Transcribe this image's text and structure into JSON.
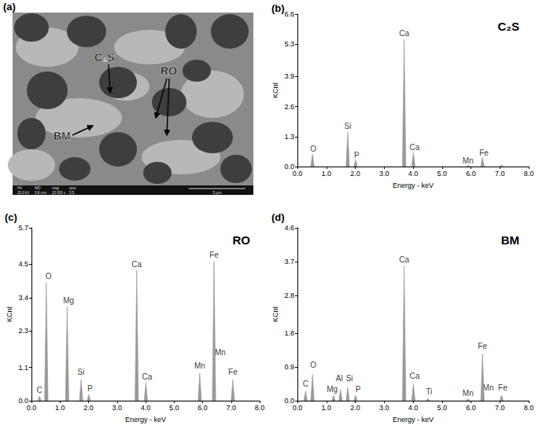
{
  "micrograph": {
    "panel": "(a)",
    "labels": [
      "C₂S",
      "RO",
      "BM"
    ],
    "info_bar": [
      "HV",
      "WD",
      "mag",
      "spot",
      "20.0 kV",
      "9.8 mm",
      "20 000 x",
      "5.5"
    ],
    "scale_bar": "5 μm"
  },
  "chart_data": [
    {
      "type": "line",
      "subtitle": "(b)",
      "title": "C₂S",
      "xlabel": "Energy - keV",
      "ylabel": "KCnt",
      "color": "#999999",
      "grid": false,
      "x": [
        0.1,
        0.46,
        0.52,
        0.58,
        1.68,
        1.74,
        1.8,
        1.95,
        2.01,
        2.07,
        3.63,
        3.69,
        3.75,
        3.95,
        4.01,
        4.07,
        5.84,
        5.9,
        5.96,
        6.34,
        6.4,
        6.46,
        7.0,
        7.06,
        7.12,
        8.0
      ],
      "values": [
        0,
        0,
        0.55,
        0,
        0,
        1.5,
        0,
        0,
        0.3,
        0,
        0,
        5.5,
        0,
        0,
        0.6,
        0,
        0,
        0.06,
        0,
        0,
        0.4,
        0,
        0,
        0.07,
        0,
        0
      ],
      "xlim": [
        0,
        8
      ],
      "xticks": [
        {
          "value": 0,
          "label": "0.0"
        },
        {
          "value": 1,
          "label": "1.0"
        },
        {
          "value": 2,
          "label": "2.0"
        },
        {
          "value": 3,
          "label": "3.0"
        },
        {
          "value": 4,
          "label": "4.0"
        },
        {
          "value": 5,
          "label": "5.0"
        },
        {
          "value": 6,
          "label": "6.0"
        },
        {
          "value": 7,
          "label": "7.0"
        },
        {
          "value": 8,
          "label": "8.0"
        }
      ],
      "ylim": [
        0,
        6.6
      ],
      "yticks": [
        {
          "value": 0,
          "label": "0.0"
        },
        1.3,
        2.6,
        3.9,
        5.3,
        6.6
      ],
      "annotations": [
        {
          "text": "O",
          "x": 0.55,
          "y": 0.75
        },
        {
          "text": "Si",
          "x": 1.74,
          "y": 1.75
        },
        {
          "text": "P",
          "x": 2.05,
          "y": 0.5
        },
        {
          "text": "Ca",
          "x": 3.69,
          "y": 5.75
        },
        {
          "text": "Ca",
          "x": 4.05,
          "y": 0.85
        },
        {
          "text": "Mn",
          "x": 5.9,
          "y": 0.25
        },
        {
          "text": "Fe",
          "x": 6.45,
          "y": 0.6
        }
      ]
    },
    {
      "type": "line",
      "subtitle": "(c)",
      "title": "RO",
      "xlabel": "Energy - keV",
      "ylabel": "KCnt",
      "color": "#999999",
      "grid": false,
      "x": [
        0.1,
        0.22,
        0.28,
        0.34,
        0.46,
        0.52,
        0.58,
        1.19,
        1.25,
        1.31,
        1.68,
        1.74,
        1.8,
        1.95,
        2.01,
        2.07,
        3.63,
        3.69,
        3.75,
        3.95,
        4.01,
        4.07,
        5.84,
        5.9,
        5.96,
        6.34,
        6.4,
        6.46,
        7.0,
        7.06,
        7.12,
        8.0
      ],
      "values": [
        0,
        0,
        0.15,
        0,
        0,
        3.9,
        0,
        0,
        3.1,
        0,
        0,
        0.7,
        0,
        0,
        0.2,
        0,
        0,
        4.3,
        0,
        0,
        0.6,
        0,
        0,
        0.9,
        0,
        0,
        4.6,
        0,
        0,
        0.7,
        0,
        0
      ],
      "xlim": [
        0,
        8
      ],
      "xticks": [
        {
          "value": 0,
          "label": "0.0"
        },
        {
          "value": 1,
          "label": "1.0"
        },
        {
          "value": 2,
          "label": "2.0"
        },
        {
          "value": 3,
          "label": "3.0"
        },
        {
          "value": 4,
          "label": "4.0"
        },
        {
          "value": 5,
          "label": "5.0"
        },
        {
          "value": 6,
          "label": "6.0"
        },
        {
          "value": 7,
          "label": "7.0"
        },
        {
          "value": 8,
          "label": "8.0"
        }
      ],
      "ylim": [
        0,
        5.7
      ],
      "yticks": [
        {
          "value": 0,
          "label": "0.0"
        },
        1.1,
        2.3,
        3.4,
        4.5,
        5.7
      ],
      "annotations": [
        {
          "text": "C",
          "x": 0.28,
          "y": 0.35
        },
        {
          "text": "O",
          "x": 0.6,
          "y": 4.1
        },
        {
          "text": "Mg",
          "x": 1.3,
          "y": 3.3
        },
        {
          "text": "Si",
          "x": 1.74,
          "y": 0.95
        },
        {
          "text": "P",
          "x": 2.05,
          "y": 0.4
        },
        {
          "text": "Ca",
          "x": 3.69,
          "y": 4.5
        },
        {
          "text": "Ca",
          "x": 4.05,
          "y": 0.8
        },
        {
          "text": "Mn",
          "x": 5.9,
          "y": 1.15
        },
        {
          "text": "Mn",
          "x": 6.62,
          "y": 1.6
        },
        {
          "text": "Fe",
          "x": 6.4,
          "y": 4.8
        },
        {
          "text": "Fe",
          "x": 7.06,
          "y": 0.95
        }
      ]
    },
    {
      "type": "line",
      "subtitle": "(d)",
      "title": "BM",
      "xlabel": "Energy - keV",
      "ylabel": "KCnt",
      "color": "#999999",
      "grid": false,
      "x": [
        0.1,
        0.22,
        0.28,
        0.34,
        0.46,
        0.52,
        0.58,
        1.19,
        1.25,
        1.31,
        1.43,
        1.49,
        1.55,
        1.68,
        1.74,
        1.8,
        1.95,
        2.01,
        2.07,
        3.63,
        3.69,
        3.75,
        3.95,
        4.01,
        4.07,
        4.45,
        4.51,
        4.57,
        5.84,
        5.9,
        5.96,
        6.34,
        6.4,
        6.46,
        7.0,
        7.06,
        7.12,
        8.0
      ],
      "values": [
        0,
        0,
        0.25,
        0,
        0,
        0.7,
        0,
        0,
        0.15,
        0,
        0,
        0.3,
        0,
        0,
        0.35,
        0,
        0,
        0.15,
        0,
        0,
        3.6,
        0,
        0,
        0.45,
        0,
        0,
        0.06,
        0,
        0,
        0.05,
        0,
        0,
        1.25,
        0,
        0,
        0.15,
        0,
        0
      ],
      "xlim": [
        0,
        8
      ],
      "xticks": [
        {
          "value": 0,
          "label": "0.0"
        },
        {
          "value": 1,
          "label": "1.0"
        },
        {
          "value": 2,
          "label": "2.0"
        },
        {
          "value": 3,
          "label": "3.0"
        },
        {
          "value": 4,
          "label": "4.0"
        },
        {
          "value": 5,
          "label": "5.0"
        },
        {
          "value": 6,
          "label": "6.0"
        },
        {
          "value": 7,
          "label": "7.0"
        },
        {
          "value": 8,
          "label": "8.0"
        }
      ],
      "ylim": [
        0,
        4.6
      ],
      "yticks": [
        {
          "value": 0,
          "label": "0.0"
        },
        0.9,
        1.8,
        2.8,
        3.7,
        4.6
      ],
      "annotations": [
        {
          "text": "C",
          "x": 0.28,
          "y": 0.45
        },
        {
          "text": "O",
          "x": 0.55,
          "y": 0.95
        },
        {
          "text": "Mg",
          "x": 1.2,
          "y": 0.3
        },
        {
          "text": "Al",
          "x": 1.45,
          "y": 0.6
        },
        {
          "text": "Si",
          "x": 1.8,
          "y": 0.6
        },
        {
          "text": "P",
          "x": 2.1,
          "y": 0.3
        },
        {
          "text": "Ca",
          "x": 3.69,
          "y": 3.75
        },
        {
          "text": "Ca",
          "x": 4.05,
          "y": 0.65
        },
        {
          "text": "Ti",
          "x": 4.55,
          "y": 0.25
        },
        {
          "text": "Mn",
          "x": 5.9,
          "y": 0.2
        },
        {
          "text": "Mn",
          "x": 6.6,
          "y": 0.35
        },
        {
          "text": "Fe",
          "x": 6.4,
          "y": 1.45
        },
        {
          "text": "Fe",
          "x": 7.1,
          "y": 0.35
        }
      ]
    }
  ]
}
